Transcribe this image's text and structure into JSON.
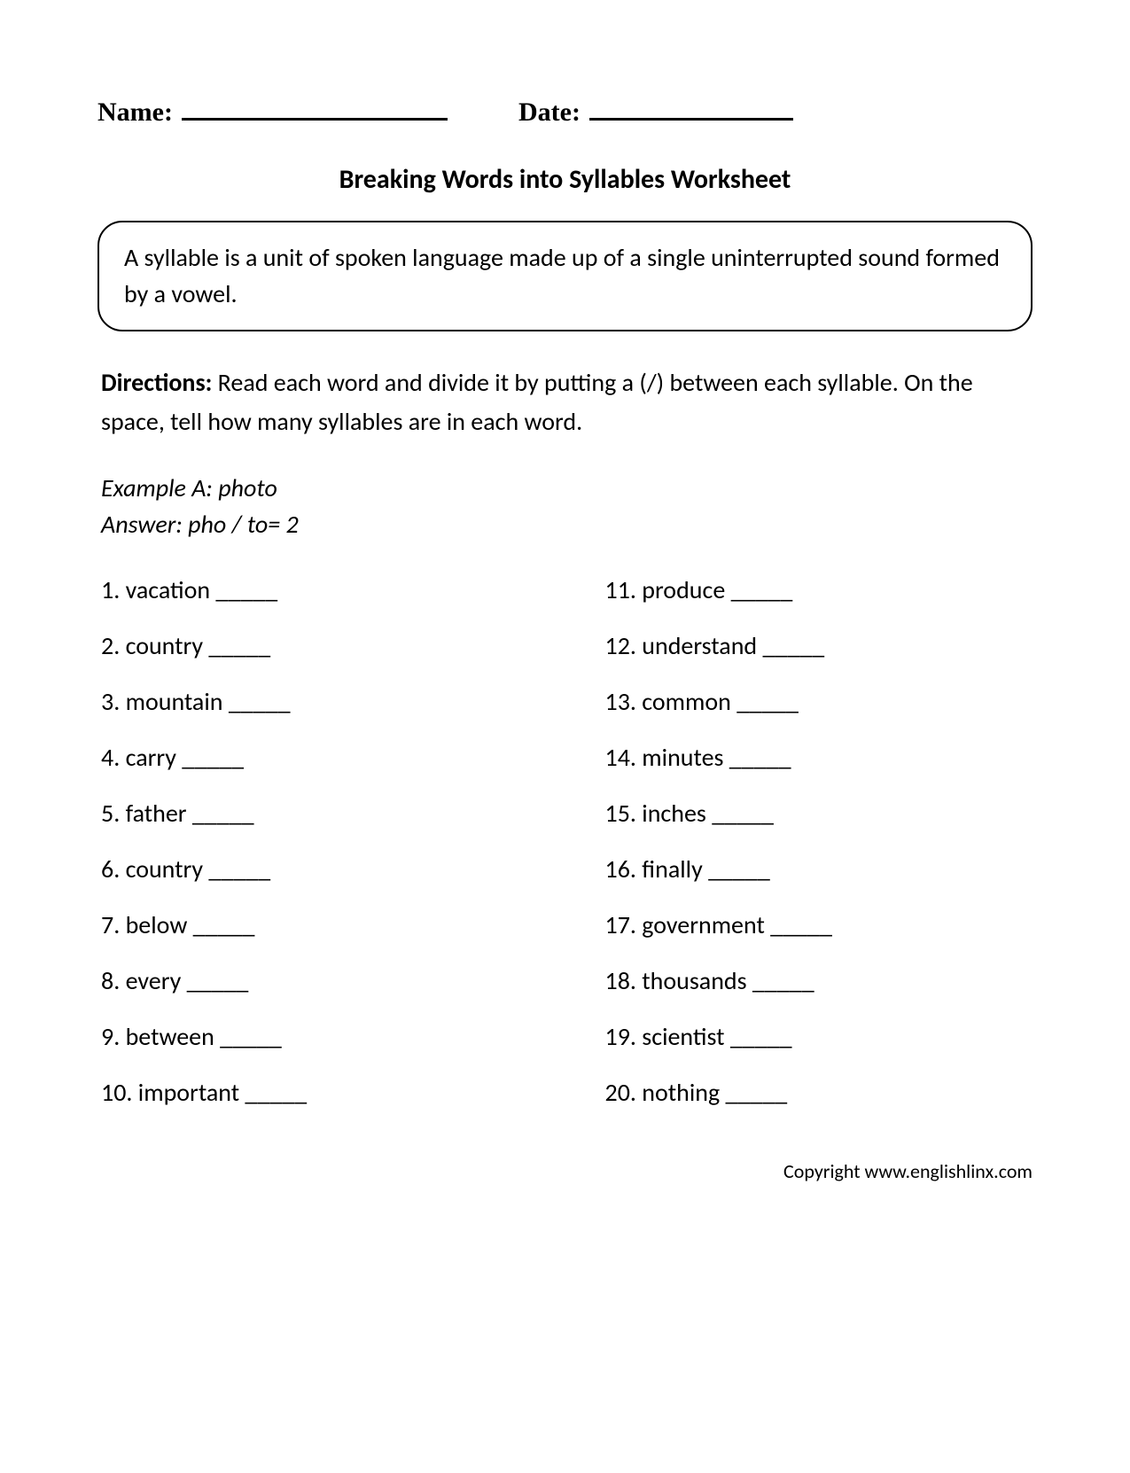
{
  "header": {
    "nameLabel": "Name:",
    "dateLabel": "Date:"
  },
  "title": "Breaking Words into Syllables Worksheet",
  "definition": "A syllable is a unit of spoken language made up of a single uninterrupted sound formed by a vowel.",
  "directionsLabel": "Directions:",
  "directionsText": " Read each word and divide it by putting a (/) between each syllable. On the space, tell how many syllables are in each word.",
  "exampleLine1": "Example A: photo",
  "exampleLine2": "Answer: pho / to= 2",
  "wordsLeft": [
    {
      "num": "1.",
      "word": "vacation"
    },
    {
      "num": "2.",
      "word": "country"
    },
    {
      "num": "3.",
      "word": "mountain"
    },
    {
      "num": "4.",
      "word": "carry"
    },
    {
      "num": "5.",
      "word": "father"
    },
    {
      "num": "6.",
      "word": "country"
    },
    {
      "num": "7.",
      "word": "below"
    },
    {
      "num": "8.",
      "word": "every"
    },
    {
      "num": "9.",
      "word": "between"
    },
    {
      "num": "10.",
      "word": "important"
    }
  ],
  "wordsRight": [
    {
      "num": "11.",
      "word": "produce"
    },
    {
      "num": "12.",
      "word": "understand"
    },
    {
      "num": "13.",
      "word": "common"
    },
    {
      "num": "14.",
      "word": "minutes"
    },
    {
      "num": "15.",
      "word": "inches"
    },
    {
      "num": "16.",
      "word": "finally"
    },
    {
      "num": "17.",
      "word": "government"
    },
    {
      "num": "18.",
      "word": "thousands"
    },
    {
      "num": "19.",
      "word": "scientist"
    },
    {
      "num": "20.",
      "word": "nothing"
    }
  ],
  "blank": "_____",
  "copyright": "Copyright www.englishlinx.com",
  "styles": {
    "bodyFontSize": 28,
    "titleFontSize": 30,
    "headerFontSize": 30,
    "copyrightFontSize": 22,
    "textColor": "#000000",
    "backgroundColor": "#ffffff",
    "borderRadius": 28,
    "borderWidth": 2
  }
}
